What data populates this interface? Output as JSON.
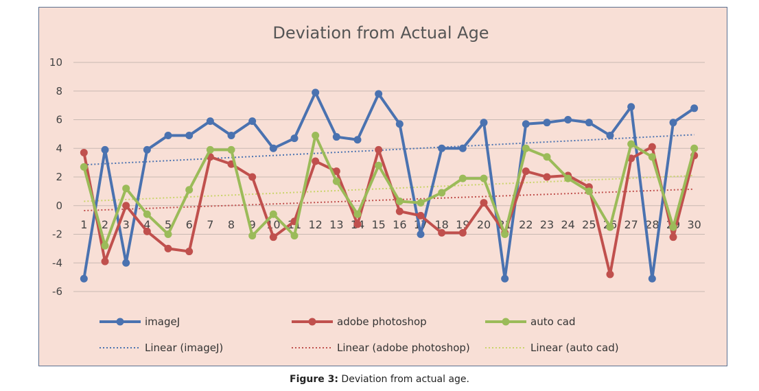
{
  "chart_data": {
    "type": "line",
    "title": "Deviation from Actual Age",
    "xlabel": "",
    "ylabel": "",
    "ylim": [
      -6,
      10
    ],
    "yticks": [
      10,
      8,
      6,
      4,
      2,
      0,
      -2,
      -4,
      -6
    ],
    "categories": [
      "1",
      "2",
      "3",
      "4",
      "5",
      "6",
      "7",
      "8",
      "9",
      "10",
      "11",
      "12",
      "13",
      "14",
      "15",
      "16",
      "17",
      "18",
      "19",
      "20",
      "21",
      "22",
      "23",
      "24",
      "25",
      "26",
      "27",
      "28",
      "29",
      "30"
    ],
    "grid": true,
    "legend_position": "bottom",
    "series": [
      {
        "name": "imageJ",
        "color": "#4a72b0",
        "values": [
          -5.1,
          3.9,
          -4.0,
          3.9,
          4.9,
          4.9,
          5.9,
          4.9,
          5.9,
          4.0,
          4.7,
          7.9,
          4.8,
          4.6,
          7.8,
          5.7,
          -2.0,
          4.0,
          4.0,
          5.8,
          -5.1,
          5.7,
          5.8,
          6.0,
          5.8,
          4.9,
          6.9,
          -5.1,
          5.8,
          6.8
        ]
      },
      {
        "name": "adobe photoshop",
        "color": "#c0504d",
        "values": [
          3.7,
          -3.9,
          0.0,
          -1.8,
          -3.0,
          -3.2,
          3.4,
          2.9,
          2.0,
          -2.2,
          -1.1,
          3.1,
          2.4,
          -1.3,
          3.9,
          -0.4,
          -0.7,
          -1.9,
          -1.9,
          0.2,
          -1.9,
          2.4,
          2.0,
          2.1,
          1.3,
          -4.8,
          3.3,
          4.1,
          -2.2,
          3.5
        ]
      },
      {
        "name": "auto cad",
        "color": "#9bbb59",
        "values": [
          2.7,
          -2.8,
          1.2,
          -0.6,
          -2.0,
          1.1,
          3.9,
          3.9,
          -2.1,
          -0.6,
          -2.1,
          4.9,
          1.7,
          -0.6,
          2.8,
          0.3,
          0.2,
          0.9,
          1.9,
          1.9,
          -2.0,
          4.0,
          3.4,
          1.9,
          1.0,
          -1.5,
          4.3,
          3.4,
          -1.5,
          4.0
        ]
      }
    ],
    "trendlines": [
      {
        "name": "Linear (imageJ)",
        "color": "#4a72b0",
        "start": 2.85,
        "end": 4.95
      },
      {
        "name": "Linear (adobe photoshop)",
        "color": "#c0504d",
        "start": -0.35,
        "end": 1.15
      },
      {
        "name": "Linear (auto cad)",
        "color": "#c9d46a",
        "start": 0.3,
        "end": 2.1
      }
    ]
  },
  "caption": {
    "label": "Figure 3:",
    "text": " Deviation from actual age."
  }
}
